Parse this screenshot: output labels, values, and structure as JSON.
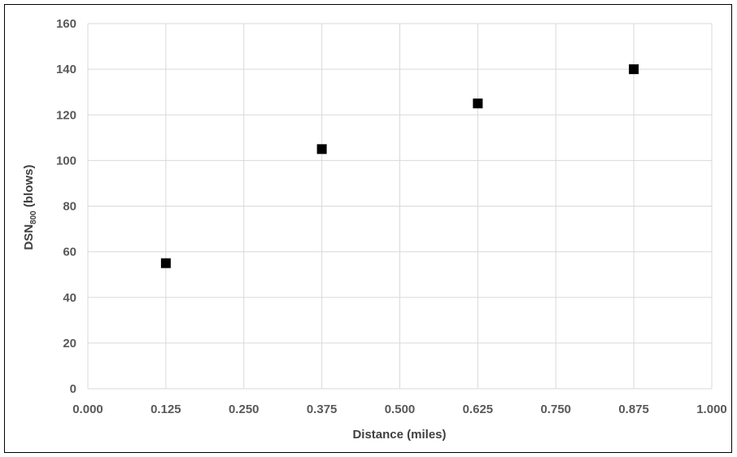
{
  "chart_data": {
    "type": "scatter",
    "xlabel": "Distance (miles)",
    "ylabel_main": "DSN",
    "ylabel_sub": "800",
    "ylabel_suffix": " (blows)",
    "xlim": [
      0,
      1
    ],
    "ylim": [
      0,
      160
    ],
    "x_ticks": [
      "0.000",
      "0.125",
      "0.250",
      "0.375",
      "0.500",
      "0.625",
      "0.750",
      "0.875",
      "1.000"
    ],
    "y_ticks": [
      "0",
      "20",
      "40",
      "60",
      "80",
      "100",
      "120",
      "140",
      "160"
    ],
    "grid": true,
    "series": [
      {
        "marker": "square",
        "color": "#000000",
        "points": [
          {
            "x": 0.125,
            "y": 55
          },
          {
            "x": 0.375,
            "y": 105
          },
          {
            "x": 0.625,
            "y": 125
          },
          {
            "x": 0.875,
            "y": 140
          }
        ]
      }
    ]
  },
  "colors": {
    "grid": "#d9d9d9",
    "frame": "#000000",
    "tick_text": "#595959"
  }
}
